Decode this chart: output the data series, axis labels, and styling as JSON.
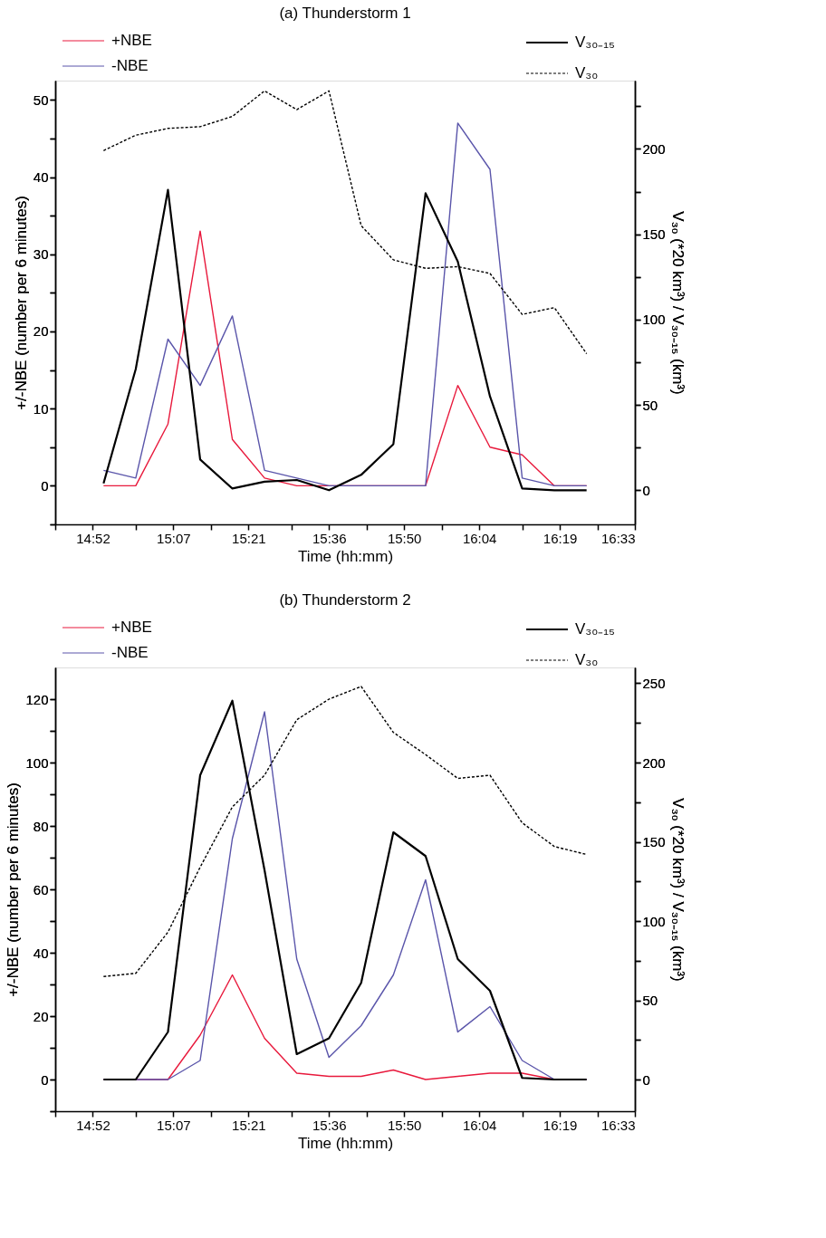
{
  "chart_data": [
    {
      "type": "line",
      "title": "(a) Thunderstorm 1",
      "xlabel": "Time (hh:mm)",
      "ylabel": "+/-NBE (number per 6 minutes)",
      "y2label": "V₃₀ (*20 km³) / V₃₀₋₁₅ (km³)",
      "x": [
        14.9,
        15.0,
        15.1,
        15.2,
        15.3,
        15.4,
        15.5,
        15.6,
        15.7,
        15.8,
        15.9,
        16.0,
        16.1,
        16.2,
        16.3,
        16.4
      ],
      "xlim": [
        14.75,
        16.55
      ],
      "xticks": [
        {
          "value": 14.75,
          "label": null
        },
        {
          "value": 14.8667,
          "label": "14:52"
        },
        {
          "value": 15.0,
          "label": null
        },
        {
          "value": 15.1167,
          "label": "15:07"
        },
        {
          "value": 15.2333,
          "label": null
        },
        {
          "value": 15.35,
          "label": "15:21"
        },
        {
          "value": 15.4833,
          "label": null
        },
        {
          "value": 15.6,
          "label": "15:36"
        },
        {
          "value": 15.7167,
          "label": null
        },
        {
          "value": 15.8333,
          "label": "15:50"
        },
        {
          "value": 15.95,
          "label": null
        },
        {
          "value": 16.0667,
          "label": "16:04"
        },
        {
          "value": 16.2,
          "label": null
        },
        {
          "value": 16.3167,
          "label": "16:19"
        },
        {
          "value": 16.4333,
          "label": null
        },
        {
          "value": 16.55,
          "label": "16:33"
        }
      ],
      "ylim": [
        -5,
        52.5
      ],
      "yticks": [
        {
          "value": -5,
          "label": null
        },
        0,
        {
          "value": 5,
          "label": null
        },
        10,
        {
          "value": 15,
          "label": null
        },
        20,
        {
          "value": 25,
          "label": null
        },
        30,
        {
          "value": 35,
          "label": null
        },
        40,
        {
          "value": 45,
          "label": null
        },
        50
      ],
      "y2lim": [
        -20,
        240
      ],
      "y2ticks": [
        0,
        {
          "value": 25,
          "label": null
        },
        50,
        {
          "value": 75,
          "label": null
        },
        100,
        {
          "value": 125,
          "label": null
        },
        150,
        {
          "value": 175,
          "label": null
        },
        200,
        {
          "value": 225,
          "label": null
        }
      ],
      "series": [
        {
          "name": "+NBE",
          "color": "#e8193c",
          "line_style": "solid",
          "values": [
            0,
            0,
            8,
            33,
            6,
            1,
            0,
            0,
            0,
            0,
            0,
            13,
            5,
            4,
            0,
            0
          ]
        },
        {
          "name": "-NBE",
          "color": "#5a55aa",
          "line_style": "solid",
          "values": [
            2,
            1,
            19,
            13,
            22,
            2,
            1,
            0,
            0,
            0,
            0,
            47,
            41,
            1,
            0,
            0
          ]
        },
        {
          "name": "V₃₀₋₁₅",
          "color": "#000000",
          "line_style": "solid",
          "axis": "y2",
          "values": [
            4,
            71,
            176,
            18,
            1,
            5,
            6,
            0,
            9,
            27,
            174,
            134,
            55,
            1,
            0,
            0
          ]
        },
        {
          "name": "V₃₀",
          "color": "#000000",
          "line_style": "dashed",
          "axis": "y2",
          "values": [
            199,
            208,
            212,
            213,
            219,
            234,
            223,
            234,
            155,
            135,
            130,
            131,
            127,
            103,
            107,
            80
          ]
        }
      ],
      "legend": "top",
      "grid": false
    },
    {
      "type": "line",
      "title": "(b) Thunderstorm 2",
      "xlabel": "Time (hh:mm)",
      "ylabel": "+/-NBE (number per 6 minutes)",
      "y2label": "V₃₀ (*20 km³) / V₃₀₋₁₅ (km³)",
      "x": [
        14.9,
        15.0,
        15.1,
        15.2,
        15.3,
        15.4,
        15.5,
        15.6,
        15.7,
        15.8,
        15.9,
        16.0,
        16.1,
        16.2,
        16.3,
        16.4
      ],
      "xlim": [
        14.75,
        16.55
      ],
      "xticks": [
        {
          "value": 14.75,
          "label": null
        },
        {
          "value": 14.8667,
          "label": "14:52"
        },
        {
          "value": 15.0,
          "label": null
        },
        {
          "value": 15.1167,
          "label": "15:07"
        },
        {
          "value": 15.2333,
          "label": null
        },
        {
          "value": 15.35,
          "label": "15:21"
        },
        {
          "value": 15.4833,
          "label": null
        },
        {
          "value": 15.6,
          "label": "15:36"
        },
        {
          "value": 15.7167,
          "label": null
        },
        {
          "value": 15.8333,
          "label": "15:50"
        },
        {
          "value": 15.95,
          "label": null
        },
        {
          "value": 16.0667,
          "label": "16:04"
        },
        {
          "value": 16.2,
          "label": null
        },
        {
          "value": 16.3167,
          "label": "16:19"
        },
        {
          "value": 16.4333,
          "label": null
        },
        {
          "value": 16.55,
          "label": "16:33"
        }
      ],
      "ylim": [
        -10,
        130
      ],
      "yticks": [
        {
          "value": -10,
          "label": null
        },
        0,
        {
          "value": 10,
          "label": null
        },
        20,
        {
          "value": 30,
          "label": null
        },
        40,
        {
          "value": 50,
          "label": null
        },
        60,
        {
          "value": 70,
          "label": null
        },
        80,
        {
          "value": 90,
          "label": null
        },
        100,
        {
          "value": 110,
          "label": null
        },
        120
      ],
      "y2lim": [
        -20,
        260
      ],
      "y2ticks": [
        0,
        {
          "value": 25,
          "label": null
        },
        50,
        {
          "value": 75,
          "label": null
        },
        100,
        {
          "value": 125,
          "label": null
        },
        150,
        {
          "value": 175,
          "label": null
        },
        200,
        {
          "value": 225,
          "label": null
        },
        250
      ],
      "series": [
        {
          "name": "+NBE",
          "color": "#e8193c",
          "line_style": "solid",
          "values": [
            0,
            0,
            0,
            14,
            33,
            13,
            2,
            1,
            1,
            3,
            0,
            1,
            2,
            2,
            0,
            0
          ]
        },
        {
          "name": "-NBE",
          "color": "#5a55aa",
          "line_style": "solid",
          "values": [
            0,
            0,
            0,
            6,
            76,
            116,
            38,
            7,
            17,
            33,
            63,
            15,
            23,
            6,
            0,
            0
          ]
        },
        {
          "name": "V₃₀₋₁₅",
          "color": "#000000",
          "line_style": "solid",
          "axis": "y2",
          "values": [
            0,
            0,
            30,
            192,
            239,
            132,
            16,
            26,
            61,
            156,
            141,
            76,
            56,
            1,
            0,
            0
          ]
        },
        {
          "name": "V₃₀",
          "color": "#000000",
          "line_style": "dashed",
          "axis": "y2",
          "values": [
            65,
            67,
            93,
            134,
            172,
            192,
            227,
            240,
            248,
            219,
            205,
            190,
            192,
            162,
            147,
            142
          ]
        }
      ],
      "legend": "top",
      "grid": false
    }
  ]
}
